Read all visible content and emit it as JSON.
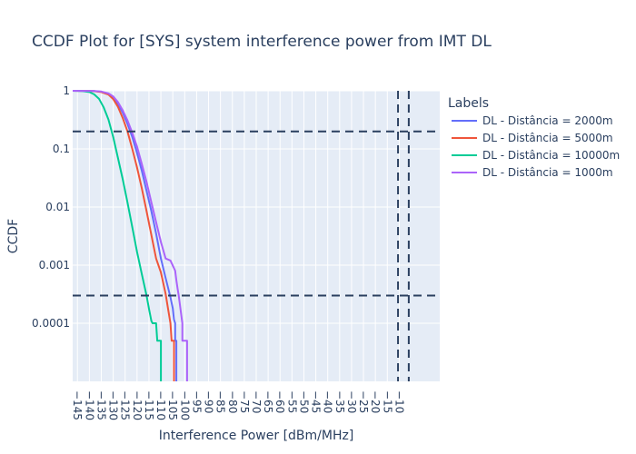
{
  "chart_data": {
    "type": "line",
    "title": "CCDF Plot for [SYS] system interference power from IMT DL",
    "xlabel": "Interference Power [dBm/MHz]",
    "ylabel": "CCDF",
    "xlim": [
      -147,
      7
    ],
    "ylim_log10": [
      -5,
      0
    ],
    "y_scale": "log",
    "x_ticks": [
      -145,
      -140,
      -135,
      -130,
      -125,
      -120,
      -115,
      -110,
      -105,
      -100,
      -95,
      -90,
      -85,
      -80,
      -75,
      -70,
      -65,
      -60,
      -55,
      -50,
      -45,
      -40,
      -35,
      -30,
      -25,
      -20,
      -15,
      -10
    ],
    "x_tick_labels": [
      "−145",
      "−140",
      "−135",
      "−130",
      "−125",
      "−120",
      "−115",
      "−110",
      "−105",
      "−100",
      "−95",
      "−90",
      "−85",
      "−80",
      "−75",
      "−70",
      "−65",
      "−60",
      "−55",
      "−50",
      "−45",
      "−40",
      "−35",
      "−30",
      "−25",
      "−20",
      "−15",
      "−10"
    ],
    "y_ticks": [
      1,
      0.1,
      0.01,
      0.001,
      0.0001
    ],
    "y_tick_labels": [
      "1",
      "0.1",
      "0.01",
      "0.001",
      "0.0001"
    ],
    "grid": true,
    "legend_title": "Labels",
    "legend_position": "right",
    "series": [
      {
        "name": "DL - Distância = 2000m",
        "color": "#636efa",
        "x": [
          -147,
          -142,
          -138,
          -135,
          -132,
          -130,
          -128,
          -126,
          -124,
          -122,
          -120,
          -118,
          -116,
          -114,
          -112,
          -110,
          -108,
          -106,
          -105,
          -104.5,
          -104,
          -104,
          -103.5,
          -103.5,
          -103.5
        ],
        "y": [
          1,
          0.998,
          0.99,
          0.96,
          0.88,
          0.77,
          0.6,
          0.42,
          0.27,
          0.16,
          0.085,
          0.042,
          0.019,
          0.0085,
          0.0035,
          0.0013,
          0.0006,
          0.00028,
          0.00018,
          0.000115,
          0.0001,
          5e-05,
          5e-05,
          1e-05,
          1e-05
        ]
      },
      {
        "name": "DL - Distância = 5000m",
        "color": "#ef553b",
        "x": [
          -147,
          -142,
          -138,
          -135,
          -132,
          -130,
          -128,
          -126,
          -124,
          -122,
          -120,
          -118,
          -116,
          -114,
          -112,
          -110,
          -108,
          -107,
          -106,
          -105.5,
          -105.5,
          -104.5,
          -104.5
        ],
        "y": [
          1,
          0.997,
          0.985,
          0.95,
          0.86,
          0.72,
          0.53,
          0.34,
          0.2,
          0.1,
          0.048,
          0.021,
          0.0085,
          0.0033,
          0.0013,
          0.00075,
          0.00032,
          0.00018,
          0.0001,
          5e-05,
          5e-05,
          5e-05,
          1e-05
        ]
      },
      {
        "name": "DL - Distância = 10000m",
        "color": "#00cc96",
        "x": [
          -147,
          -143,
          -140,
          -138,
          -136,
          -134,
          -132,
          -130,
          -128,
          -126,
          -124,
          -122,
          -120,
          -118,
          -116,
          -115,
          -114,
          -113.5,
          -113.5,
          -112,
          -111.5,
          -110.5,
          -110.5,
          -110,
          -110
        ],
        "y": [
          1,
          0.99,
          0.95,
          0.87,
          0.73,
          0.52,
          0.32,
          0.16,
          0.07,
          0.03,
          0.012,
          0.0045,
          0.0017,
          0.0007,
          0.0003,
          0.00018,
          0.00011,
          0.0001,
          0.0001,
          0.0001,
          5e-05,
          5e-05,
          5e-05,
          5e-05,
          1e-05
        ]
      },
      {
        "name": "DL - Distância = 1000m",
        "color": "#ab63fa",
        "x": [
          -147,
          -142,
          -138,
          -135,
          -132,
          -130,
          -128,
          -126,
          -124,
          -122,
          -120,
          -118,
          -116,
          -114,
          -112,
          -110,
          -108,
          -106,
          -104,
          -103.5,
          -103,
          -102.5,
          -101,
          -101,
          -100,
          -99,
          -99
        ],
        "y": [
          1,
          0.998,
          0.992,
          0.97,
          0.9,
          0.8,
          0.64,
          0.46,
          0.31,
          0.19,
          0.11,
          0.055,
          0.027,
          0.012,
          0.0055,
          0.0025,
          0.0013,
          0.0012,
          0.0008,
          0.00055,
          0.0004,
          0.0003,
          0.0001,
          5e-05,
          5e-05,
          5e-05,
          1e-05
        ]
      }
    ],
    "reference_lines": {
      "horizontal": [
        0.2,
        0.0003
      ],
      "vertical": [
        -10.5,
        -6
      ]
    }
  }
}
